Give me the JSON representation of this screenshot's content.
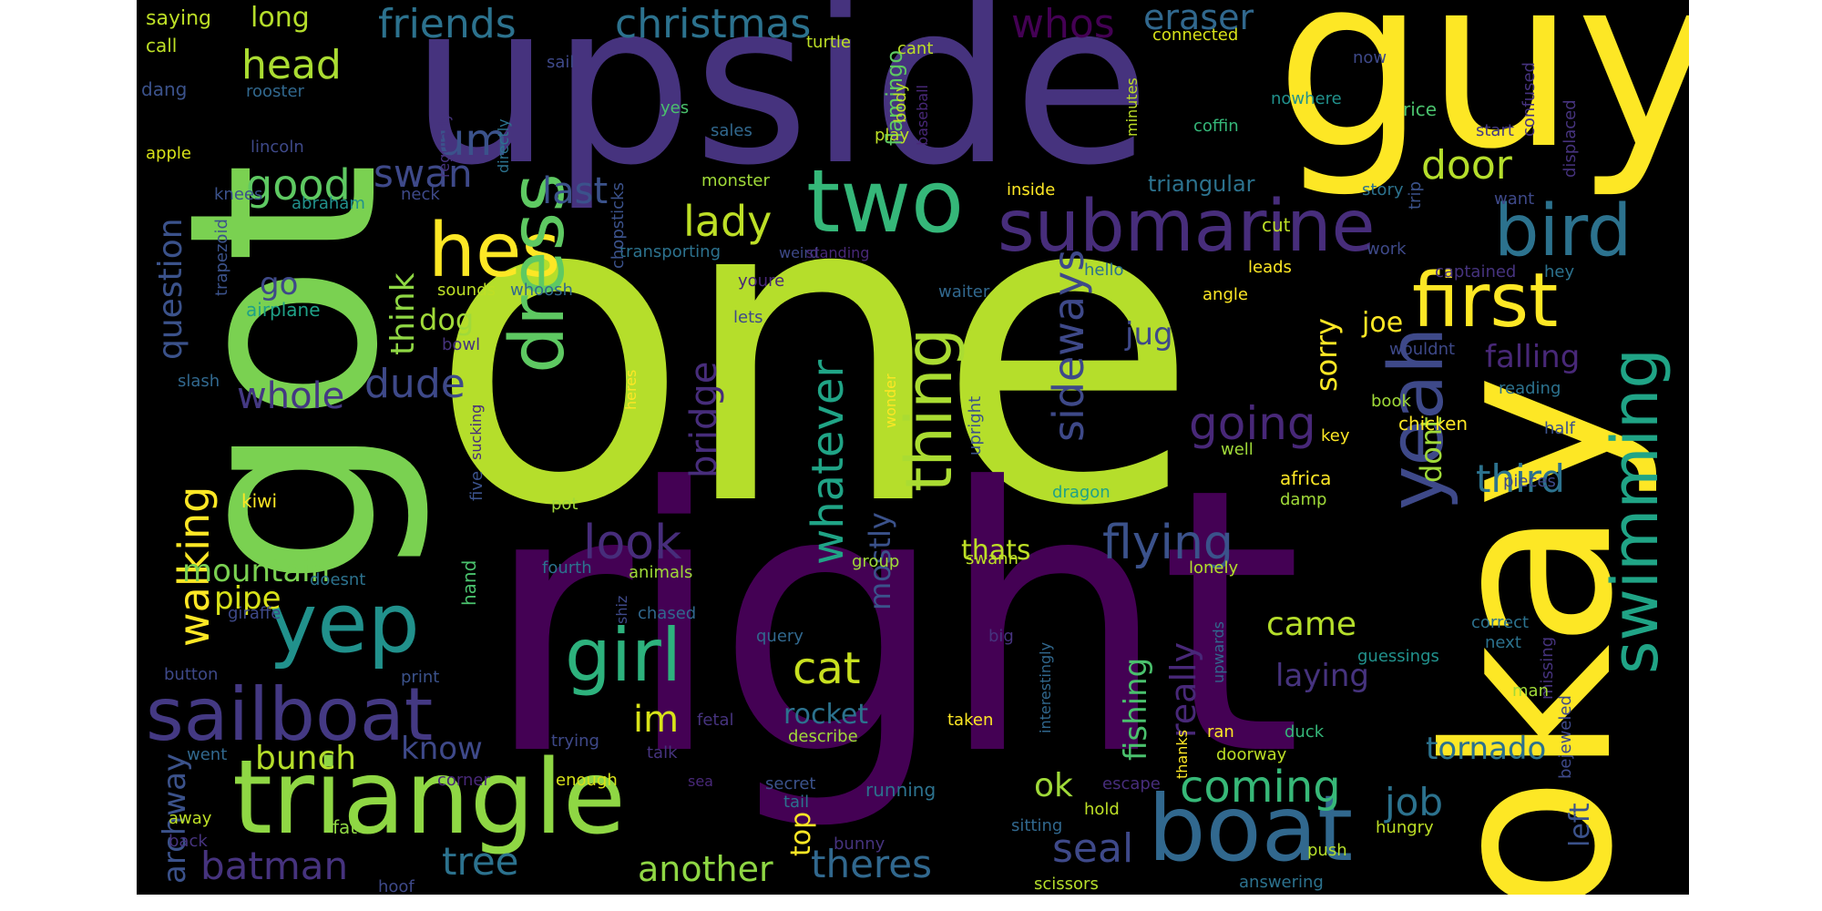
{
  "palette": {
    "dark_purple": "#440154",
    "indigo": "#46337e",
    "slate": "#365c8d",
    "teal_blue": "#277f8e",
    "teal": "#1fa187",
    "green": "#4ac16d",
    "lime": "#a0da39",
    "yellow": "#fde725"
  },
  "words": {
    "one": "one",
    "right": "right",
    "upside": "upside",
    "guy": "guy",
    "okay": "okay",
    "got": "got",
    "triangle": "triangle",
    "boat": "boat",
    "submarine": "submarine",
    "two": "two",
    "sailboat": "sailboat",
    "yep": "yep",
    "hes": "hes",
    "first": "first",
    "bird": "bird",
    "girl": "girl",
    "dress": "dress",
    "thing": "thing",
    "yeah": "yeah",
    "swimming": "swimming",
    "friends": "friends",
    "christmas": "christmas",
    "whos": "whos",
    "eraser": "eraser",
    "head": "head",
    "um": "um",
    "good": "good",
    "swan": "swan",
    "door": "door",
    "last": "last",
    "lady": "lady",
    "look": "look",
    "flying": "flying",
    "sideways": "sideways",
    "going": "going",
    "coming": "coming",
    "batman": "batman",
    "tree": "tree",
    "theres": "theres",
    "another": "another",
    "seal": "seal",
    "bridge": "bridge",
    "whatever": "whatever",
    "walking": "walking",
    "mountain": "mountain",
    "dude": "dude",
    "whole": "whole",
    "cat": "cat",
    "im": "im",
    "third": "third",
    "job": "job",
    "came": "came",
    "laying": "laying",
    "tornado": "tornado",
    "falling": "falling",
    "bunch": "bunch",
    "rocket": "rocket",
    "long": "long",
    "saying": "saying",
    "question": "question",
    "think": "think",
    "dog": "dog",
    "go": "go",
    "pipe": "pipe",
    "archway": "archway",
    "know": "know",
    "really": "really",
    "fishing": "fishing",
    "jug": "jug",
    "joe": "joe",
    "sorry": "sorry",
    "dont": "dont",
    "mostly": "mostly",
    "thats": "thats",
    "ok": "ok",
    "top": "top",
    "left": "left",
    "triangular": "triangular",
    "flamingo": "flamingo",
    "call": "call",
    "dang": "dang",
    "apple": "apple",
    "rooster": "rooster",
    "lincoln": "lincoln",
    "abraham": "abraham",
    "knees": "knees",
    "neck": "neck",
    "trapezoid": "trapezoid",
    "airplane": "airplane",
    "sounds": "sounds",
    "whoosh": "whoosh",
    "bowl": "bowl",
    "slash": "slash",
    "kiwi": "kiwi",
    "five": "five",
    "pot": "pot",
    "sucking": "sucking",
    "heres": "heres",
    "lets": "lets",
    "youre": "youre",
    "transporting": "transporting",
    "chopsticks": "chopsticks",
    "weird": "weird",
    "standing": "standing",
    "directly": "directly",
    "regularly": "regularly",
    "sail": "sail",
    "turtle": "turtle",
    "cant": "cant",
    "body": "body",
    "play": "play",
    "baseball": "baseball",
    "yes": "yes",
    "sales": "sales",
    "monster": "monster",
    "inside": "inside",
    "connected": "connected",
    "minutes": "minutes",
    "now": "now",
    "nowhere": "nowhere",
    "coffin": "coffin",
    "rice": "rice",
    "confused": "confused",
    "start": "start",
    "displaced": "displaced",
    "story": "story",
    "want": "want",
    "trip": "trip",
    "cut": "cut",
    "work": "work",
    "leads": "leads",
    "captained": "captained",
    "hey": "hey",
    "angle": "angle",
    "hello": "hello",
    "waiter": "waiter",
    "wouldnt": "wouldnt",
    "reading": "reading",
    "book": "book",
    "chicken": "chicken",
    "half": "half",
    "key": "key",
    "upright": "upright",
    "wonder": "wonder",
    "well": "well",
    "africa": "africa",
    "damp": "damp",
    "pieces": "pieces",
    "dragon": "dragon",
    "group": "group",
    "swann": "swann",
    "lonely": "lonely",
    "animals": "animals",
    "fourth": "fourth",
    "doesnt": "doesnt",
    "giraffe": "giraffe",
    "hand": "hand",
    "chased": "chased",
    "shiz": "shiz",
    "query": "query",
    "big": "big",
    "interestingly": "interestingly",
    "upwards": "upwards",
    "correct": "correct",
    "next": "next",
    "guessings": "guessings",
    "missing": "missing",
    "bejeweled": "bejeweled",
    "man": "man",
    "button": "button",
    "print": "print",
    "fetal": "fetal",
    "describe": "describe",
    "taken": "taken",
    "thanks": "thanks",
    "ran": "ran",
    "duck": "duck",
    "doorway": "doorway",
    "trying": "trying",
    "talk": "talk",
    "went": "went",
    "corner": "corner",
    "enough": "enough",
    "sea": "sea",
    "secret": "secret",
    "running": "running",
    "escape": "escape",
    "tail": "tail",
    "hold": "hold",
    "away": "away",
    "fat": "fat",
    "back": "back",
    "sitting": "sitting",
    "hungry": "hungry",
    "bunny": "bunny",
    "push": "push",
    "hoof": "hoof",
    "scissors": "scissors",
    "answering": "answering"
  }
}
